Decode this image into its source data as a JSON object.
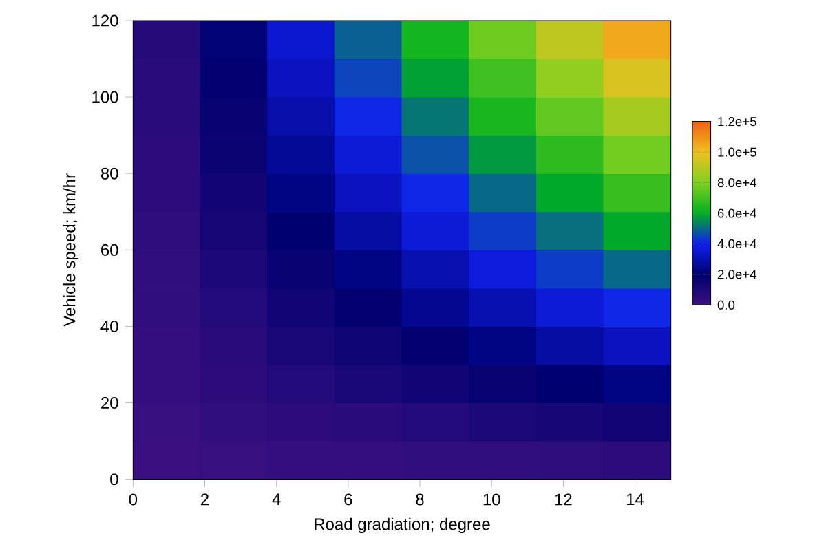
{
  "chart_data": {
    "type": "heatmap",
    "xlabel": "Road gradiation; degree",
    "ylabel": "Vehicle speed; km/hr",
    "x": [
      0.9375,
      2.8125,
      4.6875,
      6.5625,
      8.4375,
      10.3125,
      12.1875,
      14.0625
    ],
    "y": [
      115,
      105,
      95,
      85,
      75,
      65,
      55,
      45,
      35,
      25,
      15,
      5
    ],
    "cells": [
      [
        7000,
        21000,
        35000,
        49000,
        63000,
        77000,
        91000,
        105000
      ],
      [
        6000,
        19000,
        32000,
        45000,
        58000,
        70000,
        83000,
        96000
      ],
      [
        6000,
        17000,
        29000,
        41000,
        52000,
        64000,
        75000,
        87000
      ],
      [
        5000,
        16000,
        26000,
        36000,
        47000,
        57000,
        67000,
        78000
      ],
      [
        5000,
        14000,
        23000,
        32000,
        41000,
        50000,
        59000,
        69000
      ],
      [
        4000,
        12000,
        20000,
        28000,
        36000,
        44000,
        51000,
        59000
      ],
      [
        3000,
        10000,
        17000,
        23000,
        30000,
        37000,
        44000,
        50000
      ],
      [
        3000,
        8000,
        14000,
        19000,
        25000,
        30000,
        36000,
        41000
      ],
      [
        2000,
        6000,
        11000,
        15000,
        19000,
        23000,
        28000,
        32000
      ],
      [
        2000,
        5000,
        8000,
        11000,
        14000,
        17000,
        20000,
        23000
      ],
      [
        1000,
        3000,
        5000,
        6000,
        8000,
        10000,
        12000,
        14000
      ],
      [
        0,
        1000,
        2000,
        2000,
        3000,
        3000,
        4000,
        5000
      ]
    ],
    "xlim": [
      0,
      15
    ],
    "ylim": [
      0,
      120
    ],
    "xticks": [
      0,
      2,
      4,
      6,
      8,
      10,
      12,
      14
    ],
    "yticks": [
      0,
      20,
      40,
      60,
      80,
      100,
      120
    ],
    "clim": [
      0,
      120000
    ],
    "cticks": [
      {
        "value": 0,
        "label": "0.0"
      },
      {
        "value": 20000,
        "label": "2.0e+4"
      },
      {
        "value": 40000,
        "label": "4.0e+4"
      },
      {
        "value": 60000,
        "label": "6.0e+4"
      },
      {
        "value": 80000,
        "label": "8.0e+4"
      },
      {
        "value": 100000,
        "label": "1.0e+5"
      },
      {
        "value": 120000,
        "label": "1.2e+5"
      }
    ],
    "colors": [
      "#3a1080",
      "#000070",
      "#1020f0",
      "#00b020",
      "#80d020",
      "#f0c020",
      "#f06010"
    ]
  }
}
